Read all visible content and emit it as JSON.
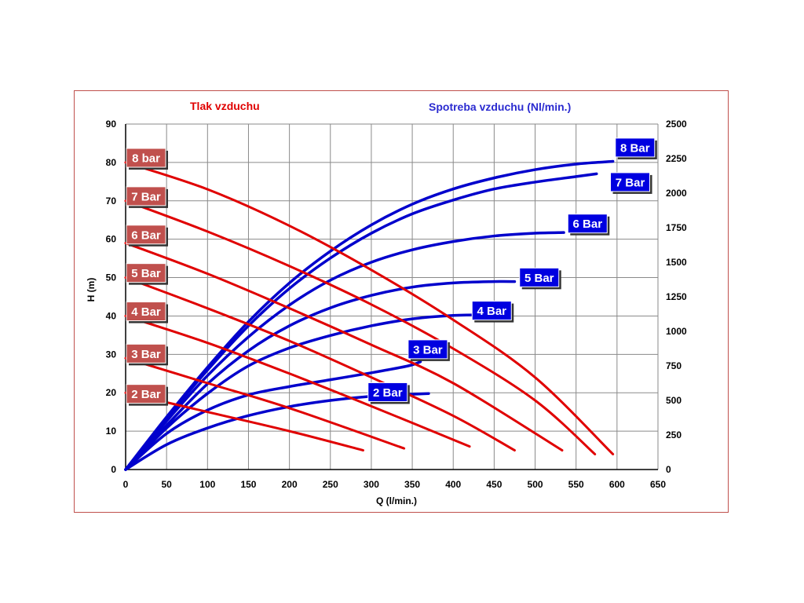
{
  "chart_data": {
    "type": "line",
    "headings": {
      "pressure": "Tlak vzduchu",
      "consumption": "Spotreba vzduchu (Nl/min.)"
    },
    "xlabel": "Q (l/min.)",
    "ylabel": "H (m)",
    "xlim": [
      0,
      650
    ],
    "ylim_left": [
      0,
      90
    ],
    "ylim_right": [
      0,
      2500
    ],
    "x_ticks": [
      "0",
      "50",
      "100",
      "150",
      "200",
      "250",
      "300",
      "350",
      "400",
      "450",
      "500",
      "550",
      "600",
      "650"
    ],
    "y_left_ticks": [
      "0",
      "10",
      "20",
      "30",
      "40",
      "50",
      "60",
      "70",
      "80",
      "90"
    ],
    "y_right_ticks": [
      "0",
      "250",
      "500",
      "750",
      "1000",
      "1250",
      "1500",
      "1750",
      "2000",
      "2250",
      "2500"
    ],
    "grid": true,
    "colors": {
      "pressure": "#e00000",
      "consumption": "#0000cc",
      "label_red": "#c0504d",
      "label_blue": "#0000e0",
      "frame": "#c0504d"
    },
    "head_series": [
      {
        "name": "2 Bar",
        "points": [
          [
            0,
            20
          ],
          [
            100,
            15
          ],
          [
            200,
            10
          ],
          [
            290,
            5
          ]
        ]
      },
      {
        "name": "3 Bar",
        "points": [
          [
            0,
            29
          ],
          [
            100,
            22.5
          ],
          [
            200,
            16
          ],
          [
            340,
            5.5
          ]
        ]
      },
      {
        "name": "4 Bar",
        "points": [
          [
            0,
            40
          ],
          [
            100,
            33
          ],
          [
            200,
            25
          ],
          [
            300,
            16.5
          ],
          [
            420,
            6
          ]
        ]
      },
      {
        "name": "5 Bar",
        "points": [
          [
            0,
            50
          ],
          [
            100,
            42
          ],
          [
            200,
            33.5
          ],
          [
            300,
            24
          ],
          [
            400,
            14
          ],
          [
            475,
            5
          ]
        ]
      },
      {
        "name": "6 Bar",
        "points": [
          [
            0,
            59
          ],
          [
            100,
            51
          ],
          [
            200,
            42
          ],
          [
            300,
            32.5
          ],
          [
            400,
            22.5
          ],
          [
            533,
            5
          ]
        ]
      },
      {
        "name": "7 Bar",
        "points": [
          [
            0,
            70
          ],
          [
            100,
            62
          ],
          [
            200,
            53
          ],
          [
            300,
            43
          ],
          [
            400,
            31.5
          ],
          [
            500,
            18
          ],
          [
            573,
            4
          ]
        ]
      },
      {
        "name": "8 bar",
        "points": [
          [
            0,
            80
          ],
          [
            100,
            73
          ],
          [
            200,
            63.5
          ],
          [
            300,
            52
          ],
          [
            400,
            39
          ],
          [
            500,
            24
          ],
          [
            595,
            4
          ]
        ]
      }
    ],
    "air_series": [
      {
        "name": "2 Bar",
        "points": [
          [
            0,
            0
          ],
          [
            50,
            180
          ],
          [
            100,
            300
          ],
          [
            150,
            390
          ],
          [
            200,
            455
          ],
          [
            250,
            500
          ],
          [
            300,
            530
          ],
          [
            350,
            545
          ],
          [
            370,
            550
          ]
        ]
      },
      {
        "name": "3 Bar",
        "points": [
          [
            0,
            0
          ],
          [
            50,
            260
          ],
          [
            100,
            430
          ],
          [
            150,
            540
          ],
          [
            200,
            600
          ],
          [
            250,
            650
          ],
          [
            300,
            700
          ],
          [
            345,
            750
          ],
          [
            360,
            780
          ]
        ]
      },
      {
        "name": "4 Bar",
        "points": [
          [
            0,
            0
          ],
          [
            50,
            300
          ],
          [
            100,
            550
          ],
          [
            150,
            750
          ],
          [
            200,
            880
          ],
          [
            250,
            970
          ],
          [
            300,
            1040
          ],
          [
            350,
            1090
          ],
          [
            400,
            1115
          ],
          [
            450,
            1120
          ]
        ]
      },
      {
        "name": "5 Bar",
        "points": [
          [
            0,
            0
          ],
          [
            50,
            320
          ],
          [
            100,
            620
          ],
          [
            150,
            860
          ],
          [
            200,
            1040
          ],
          [
            250,
            1170
          ],
          [
            300,
            1260
          ],
          [
            350,
            1320
          ],
          [
            400,
            1350
          ],
          [
            450,
            1360
          ],
          [
            475,
            1360
          ]
        ]
      },
      {
        "name": "6 Bar",
        "points": [
          [
            0,
            0
          ],
          [
            50,
            350
          ],
          [
            100,
            680
          ],
          [
            150,
            960
          ],
          [
            200,
            1190
          ],
          [
            250,
            1370
          ],
          [
            300,
            1500
          ],
          [
            350,
            1590
          ],
          [
            400,
            1650
          ],
          [
            450,
            1690
          ],
          [
            500,
            1710
          ],
          [
            535,
            1715
          ]
        ]
      },
      {
        "name": "7 Bar",
        "points": [
          [
            0,
            0
          ],
          [
            50,
            370
          ],
          [
            100,
            720
          ],
          [
            150,
            1040
          ],
          [
            200,
            1310
          ],
          [
            250,
            1530
          ],
          [
            300,
            1710
          ],
          [
            350,
            1850
          ],
          [
            400,
            1950
          ],
          [
            450,
            2030
          ],
          [
            500,
            2080
          ],
          [
            550,
            2120
          ],
          [
            575,
            2140
          ]
        ]
      },
      {
        "name": "8 Bar",
        "points": [
          [
            0,
            0
          ],
          [
            50,
            380
          ],
          [
            100,
            740
          ],
          [
            150,
            1070
          ],
          [
            200,
            1350
          ],
          [
            250,
            1580
          ],
          [
            300,
            1770
          ],
          [
            350,
            1920
          ],
          [
            400,
            2030
          ],
          [
            450,
            2110
          ],
          [
            500,
            2170
          ],
          [
            550,
            2210
          ],
          [
            595,
            2230
          ]
        ]
      }
    ],
    "head_labels": [
      {
        "text": "2 Bar",
        "h": 19.5
      },
      {
        "text": "3 Bar",
        "h": 30
      },
      {
        "text": "4 Bar",
        "h": 41
      },
      {
        "text": "5 Bar",
        "h": 51
      },
      {
        "text": "6 Bar",
        "h": 61
      },
      {
        "text": "7 Bar",
        "h": 71
      },
      {
        "text": "8 bar",
        "h": 81
      }
    ],
    "air_labels": [
      {
        "text": "2 Bar",
        "q": 320,
        "nl": 560
      },
      {
        "text": "3 Bar",
        "q": 369,
        "nl": 870
      },
      {
        "text": "4 Bar",
        "q": 447,
        "nl": 1150
      },
      {
        "text": "5 Bar",
        "q": 505,
        "nl": 1390
      },
      {
        "text": "6 Bar",
        "q": 564,
        "nl": 1780
      },
      {
        "text": "7 Bar",
        "q": 616,
        "nl": 2080
      },
      {
        "text": "8 Bar",
        "q": 622,
        "nl": 2330
      }
    ]
  }
}
